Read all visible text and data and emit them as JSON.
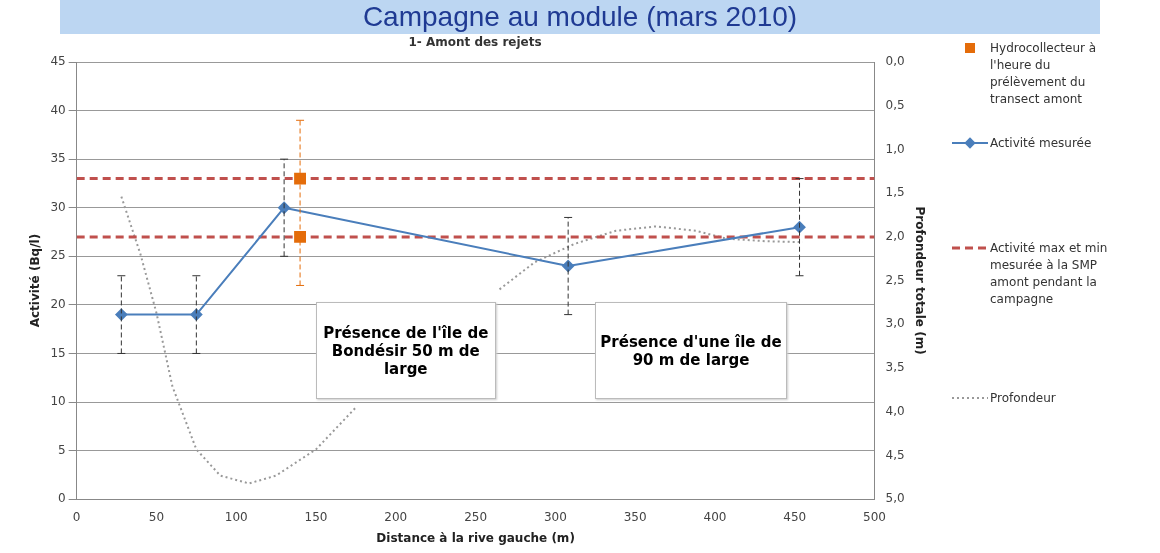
{
  "chart_data": {
    "type": "line",
    "title": "Campagne au module (mars 2010)",
    "subtitle": "1- Amont des rejets",
    "xlabel": "Distance à la rive gauche (m)",
    "ylabel": "Activité (Bq/l)",
    "y2label": "Profondeur totale (m)",
    "xlim": [
      0,
      500
    ],
    "xticks": [
      0,
      50,
      100,
      150,
      200,
      250,
      300,
      350,
      400,
      450,
      500
    ],
    "ylim": [
      0,
      45
    ],
    "yticks": [
      0,
      5,
      10,
      15,
      20,
      25,
      30,
      35,
      40,
      45
    ],
    "y2lim": [
      5,
      0
    ],
    "y2ticks": [
      {
        "value": 0,
        "label": "0,0"
      },
      {
        "value": 0.5,
        "label": "0,5"
      },
      {
        "value": 1,
        "label": "1,0"
      },
      {
        "value": 1.5,
        "label": "1,5"
      },
      {
        "value": 2,
        "label": "2,0"
      },
      {
        "value": 2.5,
        "label": "2,5"
      },
      {
        "value": 3,
        "label": "3,0"
      },
      {
        "value": 3.5,
        "label": "3,5"
      },
      {
        "value": 4,
        "label": "4,0"
      },
      {
        "value": 4.5,
        "label": "4,5"
      },
      {
        "value": 5,
        "label": "5,0"
      }
    ],
    "grid": "y",
    "legend": "right",
    "series": [
      {
        "name": "Hydrocollecteur à l'heure du prélèvement du transect amont",
        "type": "scatter",
        "marker": "square",
        "color": "#e46c0a",
        "x": [
          140,
          140
        ],
        "values": [
          33,
          27
        ],
        "errors": [
          [
            22,
            39
          ],
          null
        ]
      },
      {
        "name": "Activité mesurée",
        "type": "line",
        "marker": "diamond",
        "line_style": "solid",
        "color": "#4a7ebb",
        "x": [
          28,
          75,
          130,
          308,
          453
        ],
        "values": [
          19,
          19,
          30,
          24,
          28
        ],
        "errors": [
          4,
          4,
          5,
          5,
          5
        ]
      },
      {
        "name": "Activité max et min mesurée à la SMP amont pendant la campagne",
        "type": "line",
        "marker": "none",
        "line_style": "dashed",
        "color": "#c0504d",
        "x": [
          0,
          500
        ],
        "values": [
          33,
          33
        ]
      },
      {
        "type": "line",
        "marker": "none",
        "line_style": "dashed",
        "color": "#c0504d",
        "x": [
          0,
          500
        ],
        "values": [
          27,
          27
        ]
      },
      {
        "name": "Profondeur",
        "type": "line",
        "marker": "none",
        "line_style": "dotted",
        "color": "#999999",
        "axis": "y2",
        "x": [
          28,
          40,
          50,
          60,
          75,
          90,
          108,
          125,
          150,
          175,
          195,
          265,
          287,
          312,
          338,
          363,
          388,
          407,
          432,
          455
        ],
        "values": [
          1.54,
          2.2,
          2.87,
          3.71,
          4.43,
          4.73,
          4.82,
          4.73,
          4.43,
          3.95,
          null,
          2.6,
          2.29,
          2.08,
          1.93,
          1.88,
          1.93,
          2.02,
          2.05,
          2.06
        ]
      }
    ],
    "annotations": [
      "Présence de l'île de Bondésir 50 m de large",
      "Présence d'une île de 90 m de large"
    ]
  }
}
